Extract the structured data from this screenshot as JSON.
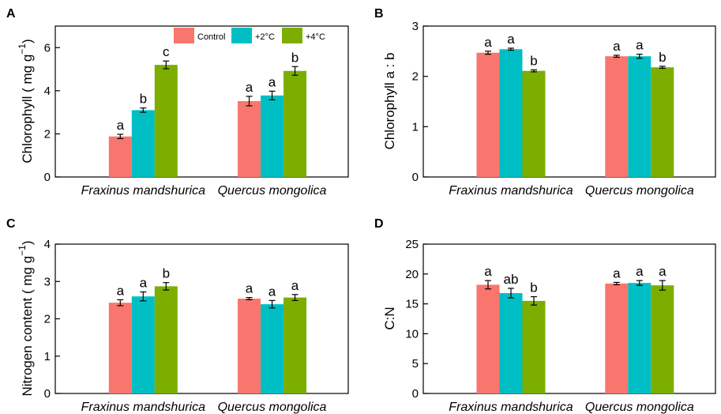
{
  "legend": [
    {
      "name": "Control",
      "color": "#f8766d"
    },
    {
      "name": "+2°C",
      "color": "#00bfc4"
    },
    {
      "name": "+4°C",
      "color": "#7cae00"
    }
  ],
  "chart_data": [
    {
      "panel": "A",
      "type": "bar",
      "ylabel": "Chlorophyll ( mg g",
      "ylabel_sup": "−1",
      "ylabel_close": ")",
      "ylim": [
        0,
        7
      ],
      "yticks": [
        "0",
        "2",
        "4",
        "6"
      ],
      "categories": [
        "Fraxinus mandshurica",
        "Quercus mongolica"
      ],
      "series": [
        {
          "name": "Control",
          "values": [
            1.88,
            3.52
          ],
          "errors": [
            0.1,
            0.22
          ],
          "letters": [
            "a",
            "a"
          ]
        },
        {
          "name": "+2°C",
          "values": [
            3.1,
            3.78
          ],
          "errors": [
            0.1,
            0.2
          ],
          "letters": [
            "b",
            "a"
          ]
        },
        {
          "name": "+4°C",
          "values": [
            5.2,
            4.92
          ],
          "errors": [
            0.18,
            0.2
          ],
          "letters": [
            "c",
            "b"
          ]
        }
      ]
    },
    {
      "panel": "B",
      "type": "bar",
      "ylabel": "Chlorophyll a : b",
      "ylim": [
        0,
        3
      ],
      "yticks": [
        "0",
        "1",
        "2",
        "3"
      ],
      "categories": [
        "Fraxinus mandshurica",
        "Quercus mongolica"
      ],
      "series": [
        {
          "name": "Control",
          "values": [
            2.47,
            2.4
          ],
          "errors": [
            0.03,
            0.02
          ],
          "letters": [
            "a",
            "a"
          ]
        },
        {
          "name": "+2°C",
          "values": [
            2.54,
            2.4
          ],
          "errors": [
            0.02,
            0.04
          ],
          "letters": [
            "a",
            "a"
          ]
        },
        {
          "name": "+4°C",
          "values": [
            2.11,
            2.18
          ],
          "errors": [
            0.02,
            0.02
          ],
          "letters": [
            "b",
            "b"
          ]
        }
      ]
    },
    {
      "panel": "C",
      "type": "bar",
      "ylabel": "Nitrogen content ( mg g",
      "ylabel_sup": "−1",
      "ylabel_close": ")",
      "ylim": [
        0,
        4
      ],
      "yticks": [
        "0",
        "1",
        "2",
        "3",
        "4"
      ],
      "categories": [
        "Fraxinus mandshurica",
        "Quercus mongolica"
      ],
      "series": [
        {
          "name": "Control",
          "values": [
            2.43,
            2.54
          ],
          "errors": [
            0.08,
            0.03
          ],
          "letters": [
            "a",
            "a"
          ]
        },
        {
          "name": "+2°C",
          "values": [
            2.6,
            2.39
          ],
          "errors": [
            0.12,
            0.1
          ],
          "letters": [
            "a",
            "a"
          ]
        },
        {
          "name": "+4°C",
          "values": [
            2.87,
            2.57
          ],
          "errors": [
            0.1,
            0.08
          ],
          "letters": [
            "b",
            "a"
          ]
        }
      ]
    },
    {
      "panel": "D",
      "type": "bar",
      "ylabel": "C:N",
      "ylim": [
        0,
        25
      ],
      "yticks": [
        "0",
        "5",
        "10",
        "15",
        "20",
        "25"
      ],
      "categories": [
        "Fraxinus mandshurica",
        "Quercus mongolica"
      ],
      "series": [
        {
          "name": "Control",
          "values": [
            18.2,
            18.4
          ],
          "errors": [
            0.7,
            0.2
          ],
          "letters": [
            "a",
            "a"
          ]
        },
        {
          "name": "+2°C",
          "values": [
            16.8,
            18.5
          ],
          "errors": [
            0.8,
            0.4
          ],
          "letters": [
            "ab",
            "a"
          ]
        },
        {
          "name": "+4°C",
          "values": [
            15.5,
            18.1
          ],
          "errors": [
            0.7,
            0.8
          ],
          "letters": [
            "b",
            "a"
          ]
        }
      ]
    }
  ]
}
